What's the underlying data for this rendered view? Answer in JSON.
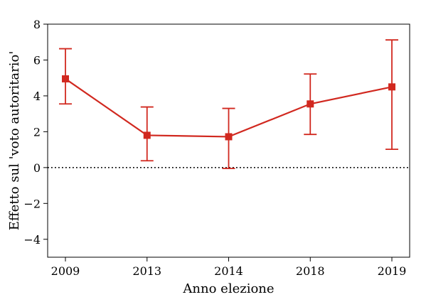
{
  "chart_data": {
    "type": "line",
    "categories": [
      "2009",
      "2013",
      "2014",
      "2018",
      "2019"
    ],
    "series": [
      {
        "values": [
          4.95,
          1.8,
          1.72,
          3.55,
          4.5
        ],
        "lower": [
          3.55,
          0.38,
          -0.05,
          1.85,
          1.02
        ],
        "upper": [
          6.63,
          3.38,
          3.3,
          5.22,
          7.12
        ],
        "color": "#d1281f",
        "marker": "square"
      }
    ],
    "xlabel": "Anno elezione",
    "ylabel": "Effetto sul 'voto autoritario'",
    "ylim": [
      -5,
      8
    ],
    "yticks": [
      8,
      6,
      4,
      2,
      0,
      -2,
      -4
    ],
    "ytick_labels": [
      "8",
      "6",
      "4",
      "2",
      "0",
      "−2",
      "−4"
    ],
    "reference_line": {
      "y": 0,
      "style": "dotted",
      "color": "#000000"
    },
    "grid": false,
    "legend": "none"
  }
}
